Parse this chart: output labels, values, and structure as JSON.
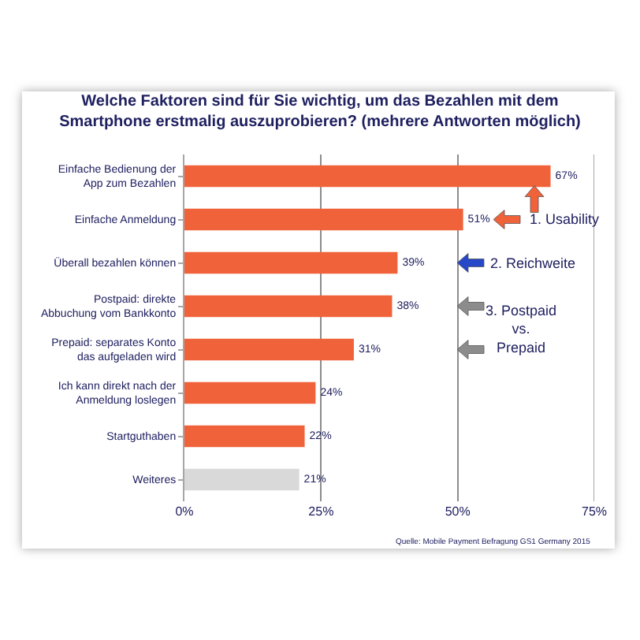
{
  "chart_data": {
    "type": "bar",
    "orientation": "horizontal",
    "title": "Welche Faktoren sind für Sie wichtig, um das Bezahlen mit dem Smartphone erstmalig auszuprobieren? (mehrere Antworten möglich)",
    "categories": [
      "Einfache Bedienung der App zum Bezahlen",
      "Einfache Anmeldung",
      "Überall bezahlen können",
      "Postpaid: direkte Abbuchung vom Bankkonto",
      "Prepaid: separates Konto das aufgeladen wird",
      "Ich kann direkt nach der Anmeldung loslegen",
      "Startguthaben",
      "Weiteres"
    ],
    "values": [
      67,
      51,
      39,
      38,
      31,
      24,
      22,
      21
    ],
    "colors": [
      "#f0623a",
      "#f0623a",
      "#f0623a",
      "#f0623a",
      "#f0623a",
      "#f0623a",
      "#f0623a",
      "#d9d9d9"
    ],
    "value_labels": [
      "67%",
      "51%",
      "39%",
      "38%",
      "31%",
      "24%",
      "22%",
      "21%"
    ],
    "xlim": [
      0,
      75
    ],
    "xticks": [
      {
        "value": 0,
        "label": "0%"
      },
      {
        "value": 25,
        "label": "25%"
      },
      {
        "value": 50,
        "label": "50%"
      },
      {
        "value": 75,
        "label": "75%"
      }
    ],
    "grid": "x",
    "annotations": [
      "1. Usability",
      "2. Reichweite",
      "3. Postpaid vs. Prepaid",
      "Quelle: Mobile Payment Befragung GS1 Germany 2015"
    ]
  }
}
